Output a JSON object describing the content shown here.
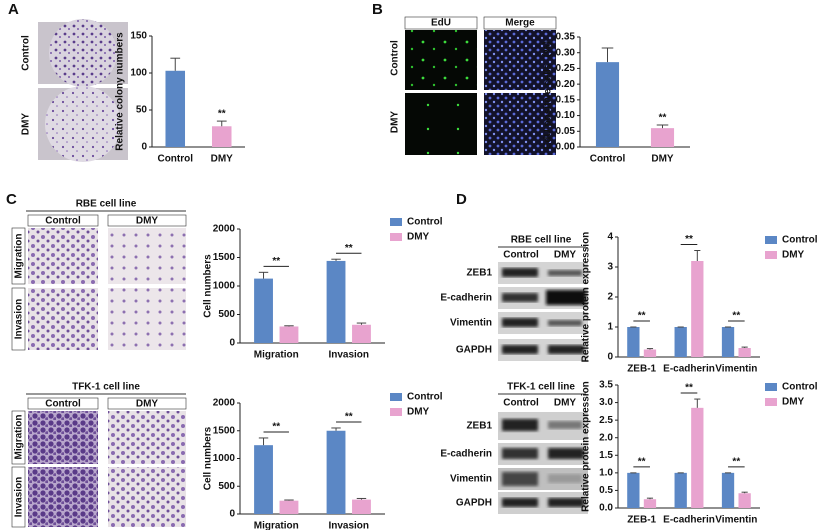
{
  "chart_data": [
    {
      "type": "bar",
      "categories": [
        "Control",
        "DMY"
      ],
      "values": [
        103,
        28
      ],
      "errors": [
        17,
        7
      ],
      "colors": [
        "#5b87c5",
        "#e8a3cf"
      ],
      "ylabel": "Relative colony numbers",
      "ylim": [
        0,
        150
      ],
      "yticks": [
        0,
        50,
        100,
        150
      ],
      "annotations": [
        null,
        "**"
      ]
    },
    {
      "type": "bar",
      "categories": [
        "Control",
        "DMY"
      ],
      "values": [
        0.27,
        0.06
      ],
      "errors": [
        0.045,
        0.01
      ],
      "colors": [
        "#5b87c5",
        "#e8a3cf"
      ],
      "ylabel": "EdU positive cells（%）",
      "ylim": [
        0,
        0.35
      ],
      "yticks": [
        {
          "value": 0,
          "label": "0.00"
        },
        {
          "value": 0.05,
          "label": "0.05"
        },
        {
          "value": 0.1,
          "label": "0.10"
        },
        {
          "value": 0.15,
          "label": "0.15"
        },
        {
          "value": 0.2,
          "label": "0.20"
        },
        {
          "value": 0.25,
          "label": "0.25"
        },
        {
          "value": 0.3,
          "label": "0.30"
        },
        {
          "value": 0.35,
          "label": "0.35"
        }
      ],
      "annotations": [
        null,
        "**"
      ]
    },
    {
      "type": "grouped-bar",
      "categories": [
        "Migration",
        "Invasion"
      ],
      "series": [
        {
          "name": "Control",
          "color": "#5b87c5",
          "values": [
            1130,
            1440
          ],
          "errors": [
            110,
            30
          ]
        },
        {
          "name": "DMY",
          "color": "#e8a3cf",
          "values": [
            290,
            320
          ],
          "errors": [
            12,
            30
          ]
        }
      ],
      "ylabel": "Cell numbers",
      "ylim": [
        0,
        2000
      ],
      "yticks": [
        0,
        500,
        1000,
        1500,
        2000
      ],
      "annotations": [
        "**",
        "**"
      ],
      "legend": "upper right"
    },
    {
      "type": "grouped-bar",
      "categories": [
        "Migration",
        "Invasion"
      ],
      "series": [
        {
          "name": "Control",
          "color": "#5b87c5",
          "values": [
            1240,
            1500
          ],
          "errors": [
            130,
            50
          ]
        },
        {
          "name": "DMY",
          "color": "#e8a3cf",
          "values": [
            240,
            260
          ],
          "errors": [
            12,
            20
          ]
        }
      ],
      "ylabel": "Cell numbers",
      "ylim": [
        0,
        2000
      ],
      "yticks": [
        0,
        500,
        1000,
        1500,
        2000
      ],
      "annotations": [
        "**",
        "**"
      ],
      "legend": "upper right"
    },
    {
      "type": "grouped-bar",
      "categories": [
        "ZEB-1",
        "E-cadherin",
        "Vimentin"
      ],
      "series": [
        {
          "name": "Control",
          "color": "#5b87c5",
          "values": [
            1,
            1,
            1
          ],
          "errors": [
            0,
            0,
            0
          ]
        },
        {
          "name": "DMY",
          "color": "#e8a3cf",
          "values": [
            0.25,
            3.2,
            0.3
          ],
          "errors": [
            0.03,
            0.35,
            0.03
          ]
        }
      ],
      "ylabel": "Relative protein expression",
      "ylim": [
        0,
        4
      ],
      "yticks": [
        0,
        1,
        2,
        3,
        4
      ],
      "annotations": [
        "**",
        "**",
        "**"
      ],
      "legend": "upper right"
    },
    {
      "type": "grouped-bar",
      "categories": [
        "ZEB-1",
        "E-cadherin",
        "Vimentin"
      ],
      "series": [
        {
          "name": "Control",
          "color": "#5b87c5",
          "values": [
            1,
            1,
            1
          ],
          "errors": [
            0,
            0,
            0
          ]
        },
        {
          "name": "DMY",
          "color": "#e8a3cf",
          "values": [
            0.25,
            2.85,
            0.42
          ],
          "errors": [
            0.03,
            0.25,
            0.03
          ]
        }
      ],
      "ylabel": "Relative protein expression",
      "ylim": [
        0,
        3.5
      ],
      "yticks": [
        {
          "value": 0,
          "label": "0.0"
        },
        {
          "value": 0.5,
          "label": "0.5"
        },
        {
          "value": 1,
          "label": "1.0"
        },
        {
          "value": 1.5,
          "label": "1.5"
        },
        {
          "value": 2,
          "label": "2.0"
        },
        {
          "value": 2.5,
          "label": "2.5"
        },
        {
          "value": 3,
          "label": "3.0"
        },
        {
          "value": 3.5,
          "label": "3.5"
        }
      ],
      "annotations": [
        "**",
        "**",
        "**"
      ],
      "legend": "upper right"
    }
  ],
  "figure": {
    "panel_letters": [
      "A",
      "B",
      "C",
      "D"
    ],
    "a_rows": [
      "Control",
      "DMY"
    ],
    "b_columns": [
      "EdU",
      "Merge"
    ],
    "b_rows": [
      "Control",
      "DMY"
    ],
    "c_blocks": [
      {
        "title": "RBE cell line",
        "columns": [
          "Control",
          "DMY"
        ],
        "rows": [
          "Migration",
          "Invasion"
        ]
      },
      {
        "title": "TFK-1 cell line",
        "columns": [
          "Control",
          "DMY"
        ],
        "rows": [
          "Migration",
          "Invasion"
        ]
      }
    ],
    "d_blots": [
      {
        "title": "RBE cell line",
        "columns": [
          "Control",
          "DMY"
        ],
        "rows": [
          "ZEB1",
          "E-cadherin",
          "Vimentin",
          "GAPDH"
        ]
      },
      {
        "title": "TFK-1 cell line",
        "columns": [
          "Control",
          "DMY"
        ],
        "rows": [
          "ZEB1",
          "E-cadherin",
          "Vimentin",
          "GAPDH"
        ]
      }
    ]
  }
}
